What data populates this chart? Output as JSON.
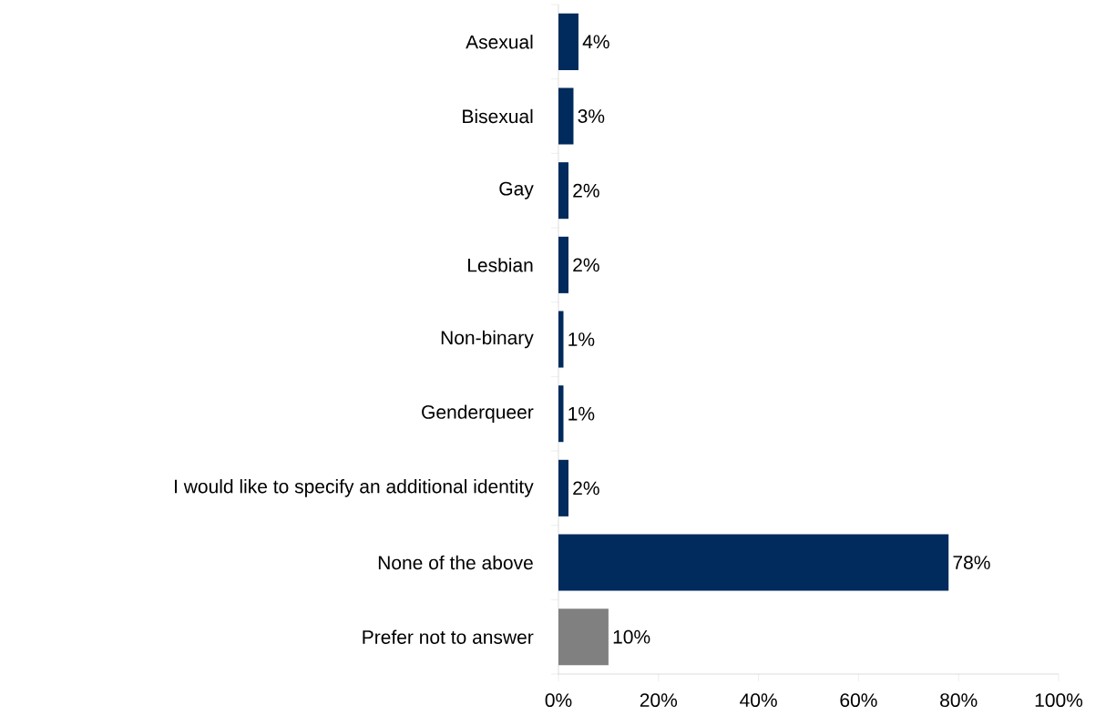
{
  "chart_data": {
    "type": "bar",
    "orientation": "horizontal",
    "categories": [
      "Asexual",
      "Bisexual",
      "Gay",
      "Lesbian",
      "Non-binary",
      "Genderqueer",
      "I would like to specify an additional identity",
      "None of the above",
      "Prefer not to answer"
    ],
    "values": [
      4,
      3,
      2,
      2,
      1,
      1,
      2,
      78,
      10
    ],
    "value_labels": [
      "4%",
      "3%",
      "2%",
      "2%",
      "1%",
      "1%",
      "2%",
      "78%",
      "10%"
    ],
    "colors": [
      "#002b5c",
      "#002b5c",
      "#002b5c",
      "#002b5c",
      "#002b5c",
      "#002b5c",
      "#002b5c",
      "#002b5c",
      "#808080"
    ],
    "xlim": [
      0,
      100
    ],
    "xticks": [
      {
        "value": 0,
        "label": "0%"
      },
      {
        "value": 20,
        "label": "20%"
      },
      {
        "value": 40,
        "label": "40%"
      },
      {
        "value": 60,
        "label": "60%"
      },
      {
        "value": 80,
        "label": "80%"
      },
      {
        "value": 100,
        "label": "100%"
      }
    ],
    "grid": false
  }
}
